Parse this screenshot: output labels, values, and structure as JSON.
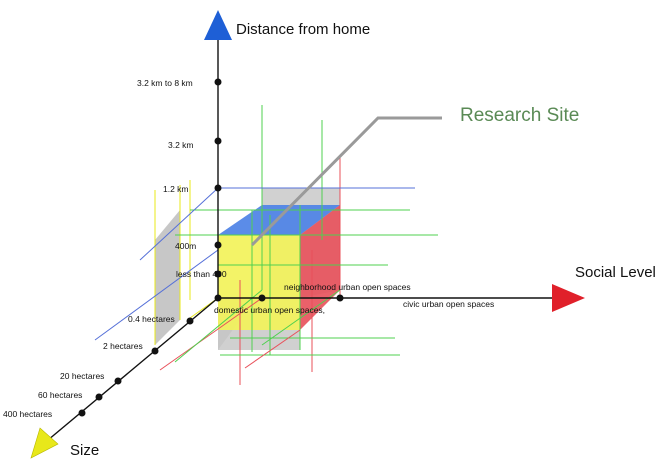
{
  "axes": {
    "vertical": {
      "title": "Distance from home",
      "ticks": [
        "3.2 km to 8 km",
        "3.2 km",
        "1.2 km",
        "400m",
        "less than 400"
      ],
      "arrow_color": "#1e5fd6"
    },
    "horizontal": {
      "title": "Social Level",
      "ticks": [
        "neighborhood urban open spaces",
        "civic urban open spaces"
      ],
      "arrow_color": "#e0202a"
    },
    "diagonal": {
      "title": "Size",
      "ticks": [
        "domestic urban open spaces,",
        "0.4 hectares",
        "2 hectares",
        "20 hectares",
        "60 hectares",
        "400 hectares"
      ],
      "arrow_color": "#e8e81a"
    }
  },
  "callout": {
    "label": "Research Site"
  },
  "colors": {
    "yellow": "#f2f25a",
    "blue": "#4d82e6",
    "red": "#e8505a",
    "gray": "#c4c4c4",
    "green": "#4fd04f",
    "site_text": "#5a8a55"
  }
}
